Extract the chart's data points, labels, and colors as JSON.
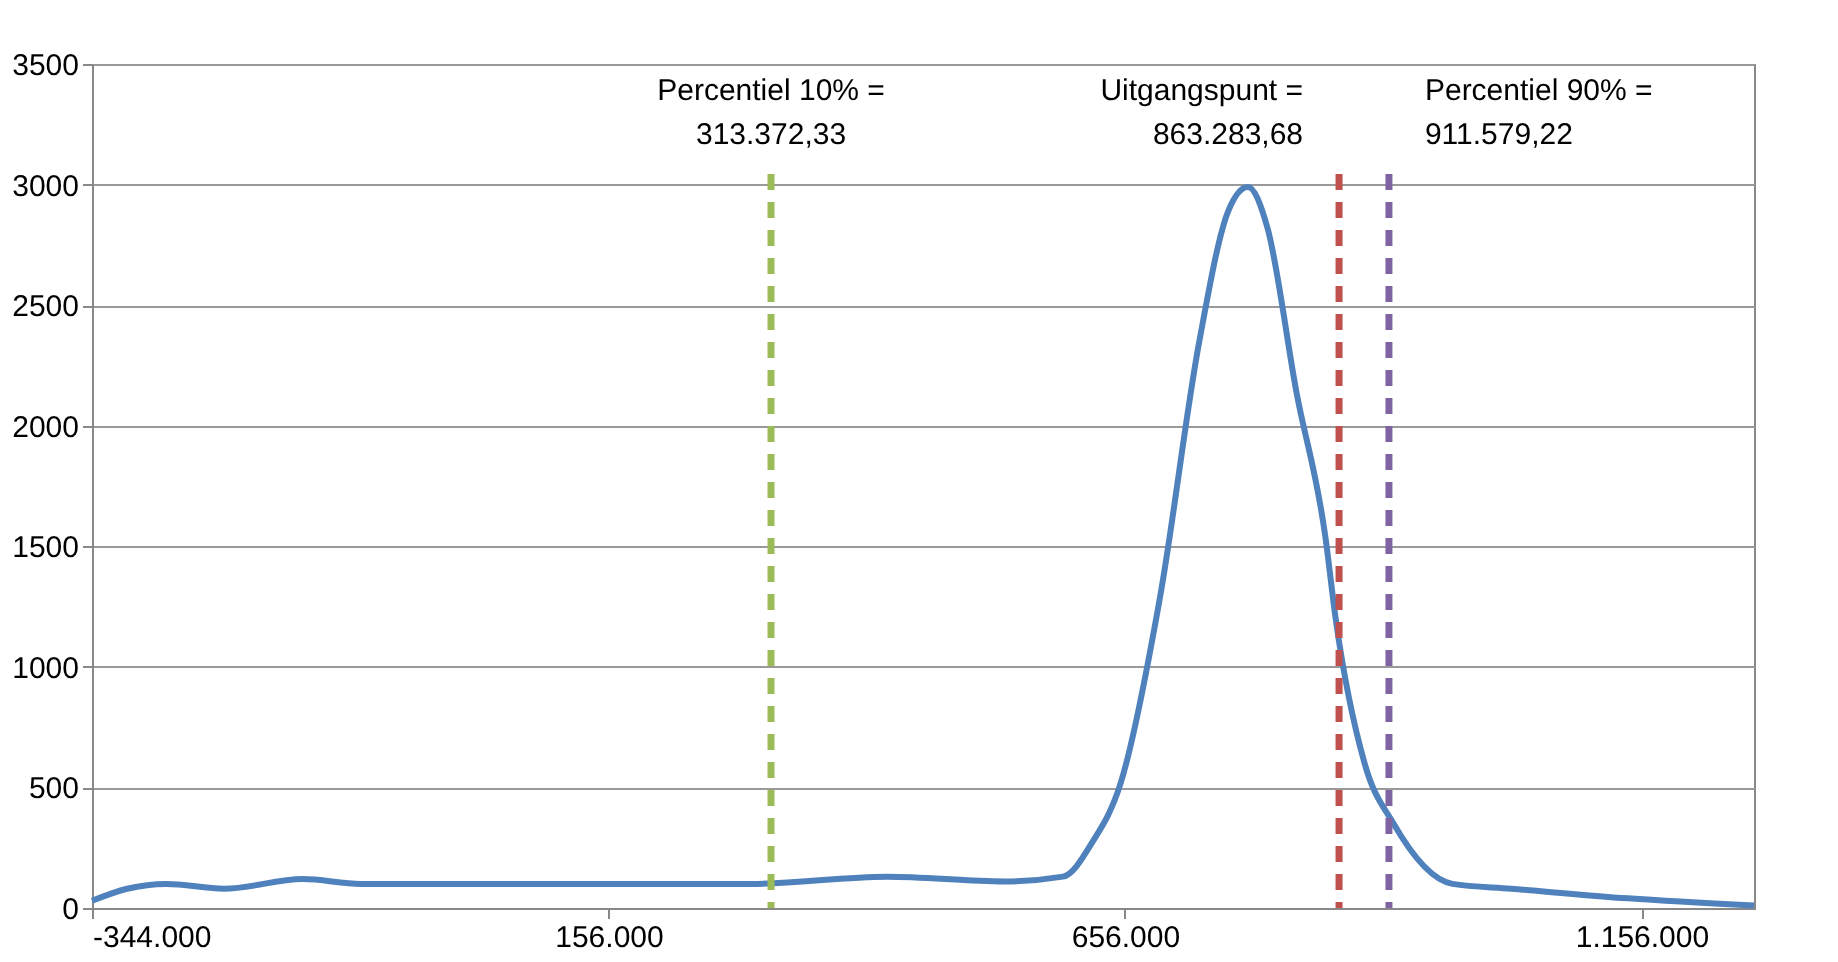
{
  "chart_data": {
    "type": "line",
    "x": [
      -344000,
      -310000,
      -272000,
      -216000,
      -140000,
      -84000,
      30000,
      162000,
      294000,
      426000,
      539000,
      596000,
      624000,
      652000,
      690000,
      728000,
      756000,
      775000,
      794000,
      822000,
      850000,
      860000,
      888000,
      916000,
      973000,
      1030000,
      1143000,
      1265000
    ],
    "series": [
      {
        "color": "#4f81bd",
        "values": [
          30,
          80,
          100,
          80,
          120,
          100,
          100,
          100,
          100,
          130,
          110,
          130,
          270,
          520,
          1290,
          2350,
          2890,
          2990,
          2820,
          2140,
          1540,
          1200,
          600,
          350,
          100,
          80,
          40,
          10
        ]
      }
    ],
    "xlim": [
      -344000,
      1265000
    ],
    "xticks": [
      {
        "value": -344000,
        "label": "-344.000"
      },
      {
        "value": 156000,
        "label": "156.000"
      },
      {
        "value": 656000,
        "label": "656.000"
      },
      {
        "value": 1156000,
        "label": "1.156.000"
      }
    ],
    "ylim": [
      0,
      3500
    ],
    "yticks": [
      0,
      500,
      1000,
      1500,
      2000,
      2500,
      3000,
      3500
    ],
    "grid": "y",
    "line_style": "solid",
    "ref_lines": [
      {
        "axis": "x",
        "value": 313372.33,
        "label": "Percentiel 10% =\n313.372,33",
        "color": "#9bbb59",
        "line_style": "dashed"
      },
      {
        "axis": "x",
        "value": 863283.68,
        "label": "Uitgangspunt =\n863.283,68",
        "color": "#c0504d",
        "line_style": "dashed"
      },
      {
        "axis": "x",
        "value": 911579.22,
        "label": "Percentiel 90% =\n911.579,22",
        "color": "#8064a2",
        "line_style": "dashed"
      }
    ]
  }
}
